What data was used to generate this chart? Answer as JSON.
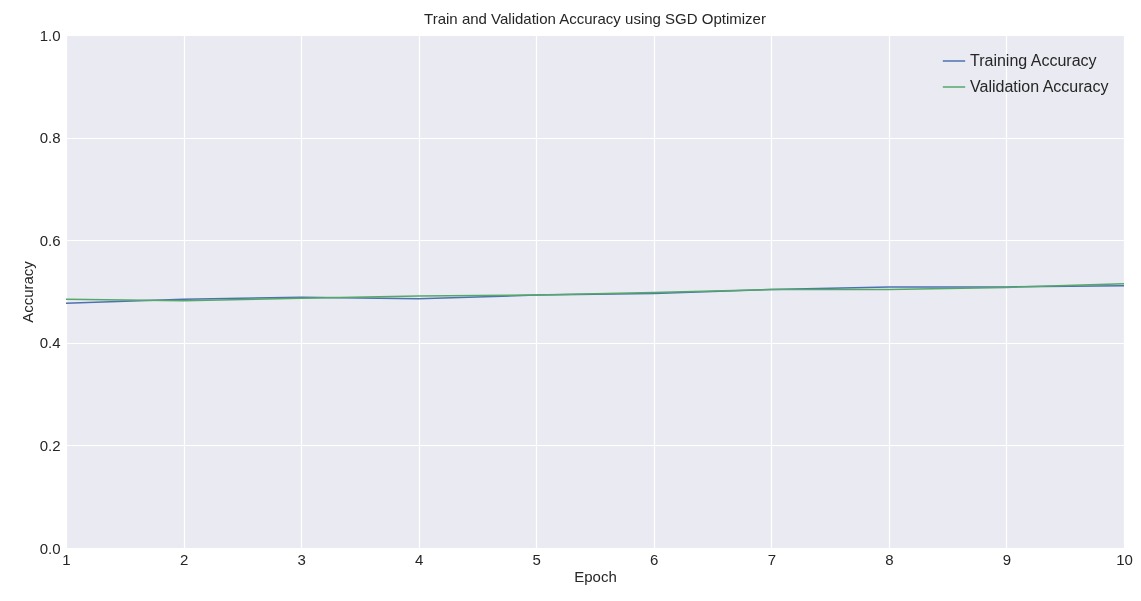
{
  "chart_data": {
    "type": "line",
    "title": "Train and Validation Accuracy using SGD Optimizer",
    "xlabel": "Epoch",
    "ylabel": "Accuracy",
    "x": [
      1,
      2,
      3,
      4,
      5,
      6,
      7,
      8,
      9,
      10
    ],
    "series": [
      {
        "name": "Training Accuracy",
        "color": "#4c72b0",
        "values": [
          0.477,
          0.485,
          0.489,
          0.486,
          0.493,
          0.496,
          0.504,
          0.509,
          0.509,
          0.511
        ]
      },
      {
        "name": "Validation Accuracy",
        "color": "#55a868",
        "values": [
          0.485,
          0.482,
          0.487,
          0.491,
          0.493,
          0.498,
          0.504,
          0.504,
          0.508,
          0.515
        ]
      }
    ],
    "xlim": [
      1,
      10
    ],
    "xticks": [
      1,
      2,
      3,
      4,
      5,
      6,
      7,
      8,
      9,
      10
    ],
    "ylim": [
      0,
      1
    ],
    "yticks": [
      {
        "value": 0,
        "label": "0.0"
      },
      {
        "value": 0.2,
        "label": "0.2"
      },
      {
        "value": 0.4,
        "label": "0.4"
      },
      {
        "value": 0.6,
        "label": "0.6"
      },
      {
        "value": 0.8,
        "label": "0.8"
      },
      {
        "value": 1,
        "label": "1.0"
      }
    ],
    "grid": true,
    "legend": "top right",
    "marker": "none",
    "line_style": "solid"
  }
}
